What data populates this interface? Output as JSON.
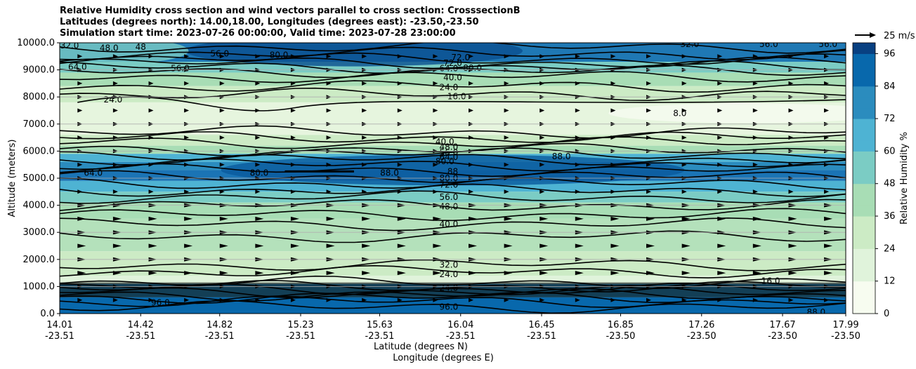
{
  "chart_data": {
    "type": "contour",
    "title": [
      "Relative Humidity cross section and wind vectors parallel to cross section: CrosssectionB",
      "Latitudes (degrees north): 14.00,18.00, Longitudes (degrees east): -23.50,-23.50",
      "Simulation start time: 2023-07-26 00:00:00, Valid time: 2023-07-28 23:00:00"
    ],
    "xlabel": "Latitude (degrees N)",
    "xlabel2": "Longitude (degrees E)",
    "ylabel": "Altitude (meters)",
    "ylim": [
      0,
      10000
    ],
    "x_ticks": [
      {
        "lat": "14.01",
        "lon": "-23.51"
      },
      {
        "lat": "14.42",
        "lon": "-23.51"
      },
      {
        "lat": "14.82",
        "lon": "-23.51"
      },
      {
        "lat": "15.23",
        "lon": "-23.51"
      },
      {
        "lat": "15.63",
        "lon": "-23.51"
      },
      {
        "lat": "16.04",
        "lon": "-23.51"
      },
      {
        "lat": "16.45",
        "lon": "-23.51"
      },
      {
        "lat": "16.85",
        "lon": "-23.50"
      },
      {
        "lat": "17.26",
        "lon": "-23.50"
      },
      {
        "lat": "17.67",
        "lon": "-23.50"
      },
      {
        "lat": "17.99",
        "lon": "-23.50"
      }
    ],
    "y_ticks": [
      "0.0",
      "1000.0",
      "2000.0",
      "3000.0",
      "4000.0",
      "5000.0",
      "6000.0",
      "7000.0",
      "8000.0",
      "9000.0",
      "10000.0"
    ],
    "y_tick_values": [
      0,
      1000,
      2000,
      3000,
      4000,
      5000,
      6000,
      7000,
      8000,
      9000,
      10000
    ],
    "colorbar": {
      "label": "Relative Humidity %",
      "ticks": [
        "0",
        "12",
        "24",
        "36",
        "48",
        "60",
        "72",
        "84",
        "96"
      ],
      "tick_values": [
        0,
        12,
        24,
        36,
        48,
        60,
        72,
        84,
        96
      ],
      "range": [
        0,
        100
      ],
      "colors": [
        "#f7fcf0",
        "#e0f3db",
        "#ccebc5",
        "#a8ddb5",
        "#7bccc4",
        "#4eb3d3",
        "#2b8cbe",
        "#0868ac",
        "#084081"
      ]
    },
    "quiver_key": "25 m/s",
    "grid": "horizontal",
    "contour_labels": [
      {
        "text": "32.0",
        "x": 14.06,
        "alt": 9900
      },
      {
        "text": "48.0",
        "x": 14.26,
        "alt": 9800
      },
      {
        "text": "48",
        "x": 14.42,
        "alt": 9850
      },
      {
        "text": "56.0",
        "x": 14.82,
        "alt": 9600
      },
      {
        "text": "80.0",
        "x": 15.12,
        "alt": 9550
      },
      {
        "text": "64.0",
        "x": 14.1,
        "alt": 9100
      },
      {
        "text": "56.0",
        "x": 14.62,
        "alt": 9050
      },
      {
        "text": "24.0",
        "x": 14.28,
        "alt": 7900
      },
      {
        "text": "72.0",
        "x": 16.04,
        "alt": 9450
      },
      {
        "text": "72.0",
        "x": 16.0,
        "alt": 9250
      },
      {
        "text": "64.0",
        "x": 15.98,
        "alt": 9050
      },
      {
        "text": "80.0",
        "x": 16.1,
        "alt": 9070
      },
      {
        "text": "40.0",
        "x": 16.0,
        "alt": 8720
      },
      {
        "text": "24.0",
        "x": 15.98,
        "alt": 8350
      },
      {
        "text": "16.0",
        "x": 16.02,
        "alt": 8020
      },
      {
        "text": "8.0",
        "x": 17.15,
        "alt": 7400
      },
      {
        "text": "40.0",
        "x": 15.96,
        "alt": 6350
      },
      {
        "text": "48.0",
        "x": 15.98,
        "alt": 6150
      },
      {
        "text": "56.0",
        "x": 15.98,
        "alt": 5950
      },
      {
        "text": "64.0",
        "x": 15.98,
        "alt": 5780
      },
      {
        "text": "80.0",
        "x": 15.96,
        "alt": 5620
      },
      {
        "text": "88.0",
        "x": 16.55,
        "alt": 5800
      },
      {
        "text": "88.0",
        "x": 15.68,
        "alt": 5200
      },
      {
        "text": "80.0",
        "x": 15.02,
        "alt": 5200
      },
      {
        "text": "64.0",
        "x": 14.18,
        "alt": 5200
      },
      {
        "text": "88",
        "x": 16.0,
        "alt": 5250
      },
      {
        "text": "80.0",
        "x": 15.98,
        "alt": 5000
      },
      {
        "text": "72.0",
        "x": 15.98,
        "alt": 4750
      },
      {
        "text": "56.0",
        "x": 15.98,
        "alt": 4300
      },
      {
        "text": "48.0",
        "x": 15.98,
        "alt": 3950
      },
      {
        "text": "40.0",
        "x": 15.98,
        "alt": 3300
      },
      {
        "text": "32.0",
        "x": 15.98,
        "alt": 1800
      },
      {
        "text": "24.0",
        "x": 15.98,
        "alt": 1450
      },
      {
        "text": "16.0",
        "x": 17.61,
        "alt": 1200
      },
      {
        "text": "24.0",
        "x": 15.98,
        "alt": 950
      },
      {
        "text": "96.0",
        "x": 15.98,
        "alt": 250
      },
      {
        "text": "96.0",
        "x": 14.52,
        "alt": 400
      },
      {
        "text": "88.0",
        "x": 17.84,
        "alt": 50
      },
      {
        "text": "32.0",
        "x": 17.2,
        "alt": 9950
      },
      {
        "text": "56.0",
        "x": 17.6,
        "alt": 9950
      },
      {
        "text": "56.0",
        "x": 17.9,
        "alt": 9950
      }
    ]
  }
}
